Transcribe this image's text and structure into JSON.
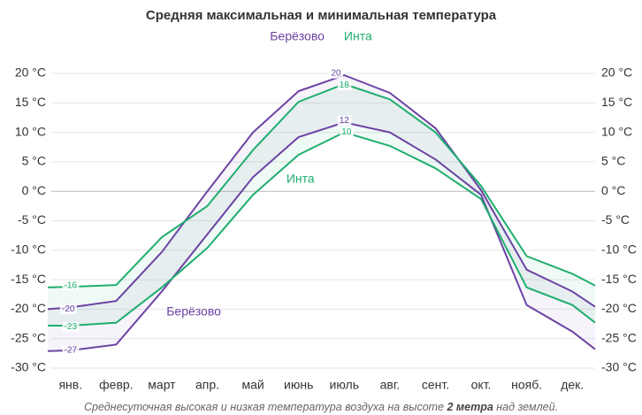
{
  "chart_data": {
    "type": "line",
    "title": "Средняя максимальная и минимальная температура",
    "x": [
      0,
      0.5,
      1.5,
      2.5,
      3.5,
      4.5,
      5.5,
      6.5,
      7.5,
      8.5,
      9.5,
      10.5,
      11.5,
      12
    ],
    "xlim": [
      0,
      12
    ],
    "xticks": [
      {
        "value": 0.5,
        "label": "янв."
      },
      {
        "value": 1.5,
        "label": "февр."
      },
      {
        "value": 2.5,
        "label": "март"
      },
      {
        "value": 3.5,
        "label": "апр."
      },
      {
        "value": 4.5,
        "label": "май"
      },
      {
        "value": 5.5,
        "label": "июнь"
      },
      {
        "value": 6.5,
        "label": "июль"
      },
      {
        "value": 7.5,
        "label": "авг."
      },
      {
        "value": 8.5,
        "label": "сент."
      },
      {
        "value": 9.5,
        "label": "окт."
      },
      {
        "value": 10.5,
        "label": "нояб."
      },
      {
        "value": 11.5,
        "label": "дек."
      }
    ],
    "ylim": [
      -30,
      20
    ],
    "yticks": [
      {
        "value": 20,
        "label": "20 °C"
      },
      {
        "value": 15,
        "label": "15 °C"
      },
      {
        "value": 10,
        "label": "10 °C"
      },
      {
        "value": 5,
        "label": "5 °C"
      },
      {
        "value": 0,
        "label": "0 °C"
      },
      {
        "value": -5,
        "label": "-5 °C"
      },
      {
        "value": -10,
        "label": "-10 °C"
      },
      {
        "value": -15,
        "label": "-15 °C"
      },
      {
        "value": -20,
        "label": "-20 °C"
      },
      {
        "value": -25,
        "label": "-25 °C"
      },
      {
        "value": -30,
        "label": "-30 °C"
      }
    ],
    "grid": true,
    "legend": [
      {
        "name": "Берёзово",
        "color": "#6c43a3"
      },
      {
        "name": "Инта",
        "color": "#1fae6e"
      }
    ],
    "series": [
      {
        "station": 0,
        "color": "#6c43a3",
        "values": [
          -20,
          -19.7,
          -18.6,
          -10.3,
          0,
          10,
          17,
          19.7,
          16.7,
          10.7,
          0.2,
          -13.3,
          -17,
          -19.6
        ]
      },
      {
        "station": 0,
        "color": "#6c43a3",
        "values": [
          -27.1,
          -27,
          -26,
          -17,
          -7.3,
          2.4,
          9.2,
          11.7,
          10,
          5.4,
          -0.6,
          -19.3,
          -23.8,
          -26.8
        ]
      },
      {
        "station": 1,
        "color": "#1fae6e",
        "values": [
          -16.3,
          -16.2,
          -15.9,
          -7.8,
          -2.5,
          7,
          15.2,
          18.2,
          15.6,
          10,
          0.9,
          -11,
          -14,
          -16
        ]
      },
      {
        "station": 1,
        "color": "#1fae6e",
        "values": [
          -22.8,
          -22.8,
          -22.3,
          -16.3,
          -9.6,
          -0.6,
          6.2,
          10,
          7.7,
          3.9,
          -1.3,
          -16.3,
          -19.3,
          -22.3
        ]
      }
    ],
    "annotations": [
      {
        "text": "-16",
        "x": 0.5,
        "y": -16,
        "color": "#1fae6e"
      },
      {
        "text": "-20",
        "x": 0.45,
        "y": -20,
        "color": "#6c43a3"
      },
      {
        "text": "-23",
        "x": 0.5,
        "y": -23,
        "color": "#1fae6e"
      },
      {
        "text": "-27",
        "x": 0.5,
        "y": -27,
        "color": "#6c43a3"
      },
      {
        "text": "20",
        "x": 6.32,
        "y": 20,
        "color": "#6c43a3"
      },
      {
        "text": "18",
        "x": 6.5,
        "y": 18,
        "color": "#1fae6e"
      },
      {
        "text": "12",
        "x": 6.5,
        "y": 12,
        "color": "#6c43a3"
      },
      {
        "text": "10",
        "x": 6.55,
        "y": 10,
        "color": "#1fae6e"
      }
    ],
    "series_labels": [
      {
        "text": "Инта",
        "x": 5.54,
        "y": 2,
        "color": "#1fae6e"
      },
      {
        "text": "Берёзово",
        "x": 3.2,
        "y": -20.5,
        "color": "#6c43a3"
      }
    ],
    "footer": {
      "before": "Среднесуточная высокая и низкая температура воздуха на высоте ",
      "bold": "2 метра",
      "after": " над землей."
    }
  }
}
